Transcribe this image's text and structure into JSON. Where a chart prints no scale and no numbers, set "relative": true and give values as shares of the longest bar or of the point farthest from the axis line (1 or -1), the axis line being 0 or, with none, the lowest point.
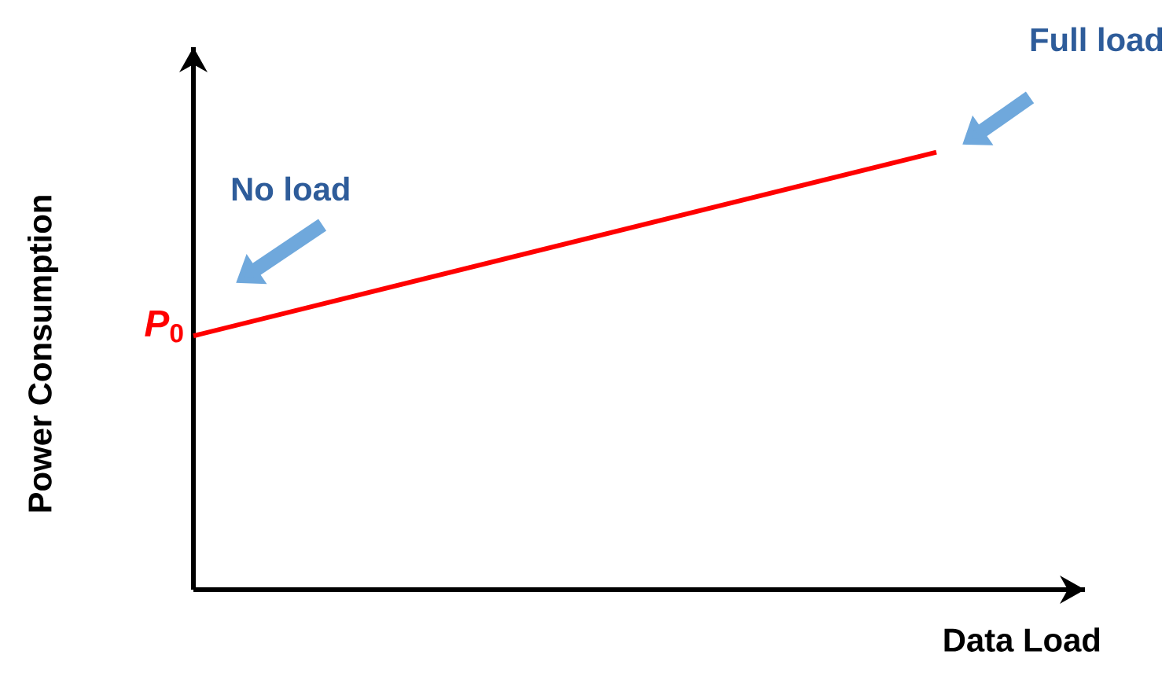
{
  "chart_data": {
    "type": "line",
    "relative": true,
    "xlabel": "Data Load",
    "ylabel": "Power Consumption",
    "categories": [
      null,
      null
    ],
    "series": [
      {
        "color": "#ff0000",
        "values": [
          0.58,
          1
        ]
      }
    ],
    "marker": "none",
    "annotations": [
      "*P*$_{0}$",
      "No load",
      "Full load"
    ]
  }
}
